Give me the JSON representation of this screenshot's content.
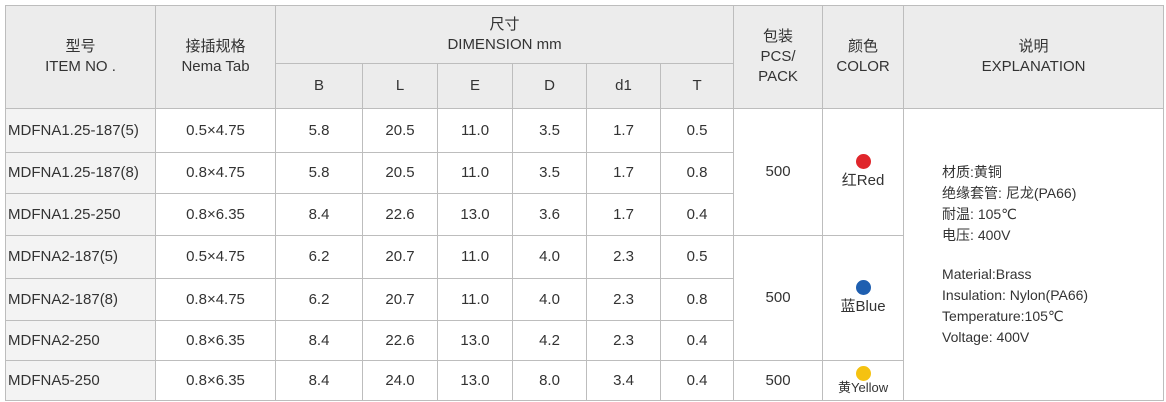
{
  "table": {
    "header": {
      "item": [
        "型号",
        "ITEM NO ."
      ],
      "spec": [
        "接插规格",
        "Nema Tab"
      ],
      "dimension": [
        "尺寸",
        "DIMENSION mm"
      ],
      "sub": [
        "B",
        "L",
        "E",
        "D",
        "d1",
        "T"
      ],
      "pack": [
        "包装",
        "PCS/",
        "PACK"
      ],
      "color": [
        "颜色",
        "COLOR"
      ],
      "explanation": [
        "说明",
        "EXPLANATION"
      ]
    },
    "rows": [
      [
        "MDFNA1.25-187(5)",
        "0.5×4.75",
        "5.8",
        "20.5",
        "11.0",
        "3.5",
        "1.7",
        "0.5"
      ],
      [
        "MDFNA1.25-187(8)",
        "0.8×4.75",
        "5.8",
        "20.5",
        "11.0",
        "3.5",
        "1.7",
        "0.8"
      ],
      [
        "MDFNA1.25-250",
        "0.8×6.35",
        "8.4",
        "22.6",
        "13.0",
        "3.6",
        "1.7",
        "0.4"
      ],
      [
        "MDFNA2-187(5)",
        "0.5×4.75",
        "6.2",
        "20.7",
        "11.0",
        "4.0",
        "2.3",
        "0.5"
      ],
      [
        "MDFNA2-187(8)",
        "0.8×4.75",
        "6.2",
        "20.7",
        "11.0",
        "4.0",
        "2.3",
        "0.8"
      ],
      [
        "MDFNA2-250",
        "0.8×6.35",
        "8.4",
        "22.6",
        "13.0",
        "4.2",
        "2.3",
        "0.4"
      ],
      [
        "MDFNA5-250",
        "0.8×6.35",
        "8.4",
        "24.0",
        "13.0",
        "8.0",
        "3.4",
        "0.4"
      ]
    ],
    "groups": [
      {
        "pack": "500",
        "color": "红Red",
        "dot": "#e0262b"
      },
      {
        "pack": "500",
        "color": "蓝Blue",
        "dot": "#1f5fb0"
      },
      {
        "pack": "500",
        "color": "黄Yellow",
        "dot": "#f5c211"
      }
    ],
    "explanation": {
      "zh": [
        "材质:黄铜",
        "绝缘套管: 尼龙(PA66)",
        "耐温: 105℃",
        "电压: 400V"
      ],
      "en": [
        "Material:Brass",
        "Insulation: Nylon(PA66)",
        "Temperature:105℃",
        "Voltage: 400V"
      ]
    }
  }
}
